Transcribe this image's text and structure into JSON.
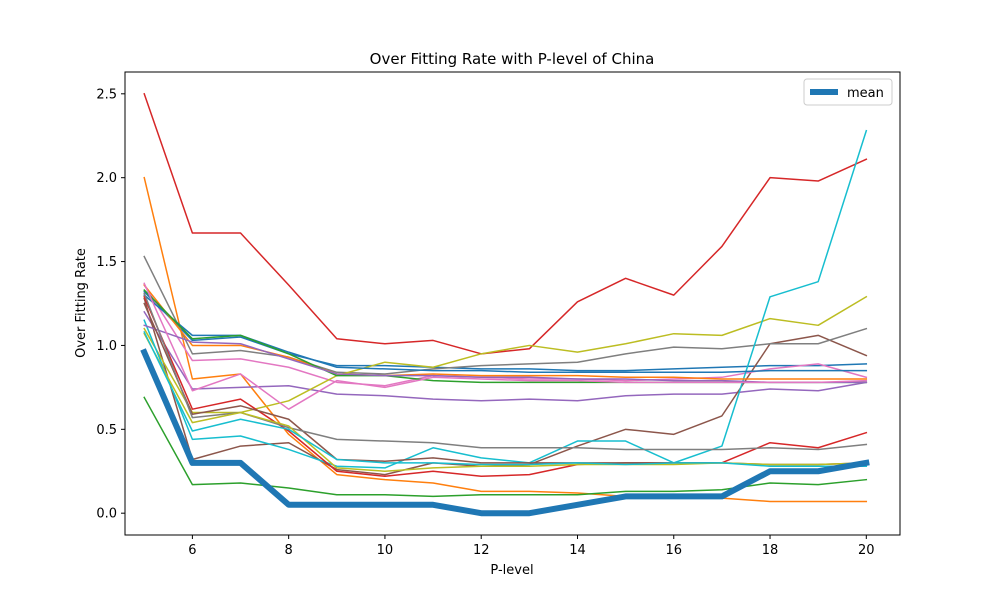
{
  "chart_data": {
    "type": "line",
    "title": "Over Fitting Rate with P-level of China",
    "xlabel": "P-level",
    "ylabel": "Over Fitting Rate",
    "xlim": [
      4.6,
      20.7
    ],
    "ylim": [
      -0.13,
      2.63
    ],
    "xticks": [
      6,
      8,
      10,
      12,
      14,
      16,
      18,
      20
    ],
    "yticks": [
      0.0,
      0.5,
      1.0,
      1.5,
      2.0,
      2.5
    ],
    "grid": false,
    "legend": {
      "position": "top-right",
      "entries": [
        "mean"
      ]
    },
    "x": [
      5,
      6,
      7,
      8,
      9,
      10,
      11,
      12,
      13,
      14,
      15,
      16,
      17,
      18,
      19,
      20
    ],
    "series": [
      {
        "color": "#1f77b4",
        "values": [
          1.32,
          1.03,
          1.05,
          0.95,
          0.88,
          0.88,
          0.87,
          0.86,
          0.86,
          0.85,
          0.85,
          0.86,
          0.87,
          0.88,
          0.88,
          0.89
        ]
      },
      {
        "color": "#ff7f0e",
        "values": [
          2.0,
          0.8,
          0.83,
          0.47,
          0.23,
          0.2,
          0.18,
          0.13,
          0.13,
          0.12,
          0.1,
          0.1,
          0.09,
          0.07,
          0.07,
          0.07
        ]
      },
      {
        "color": "#2ca02c",
        "values": [
          0.69,
          0.17,
          0.18,
          0.15,
          0.11,
          0.11,
          0.1,
          0.11,
          0.11,
          0.11,
          0.13,
          0.13,
          0.14,
          0.18,
          0.17,
          0.2
        ]
      },
      {
        "color": "#d62728",
        "values": [
          2.5,
          1.67,
          1.67,
          1.36,
          1.04,
          1.01,
          1.03,
          0.95,
          0.98,
          1.26,
          1.4,
          1.3,
          1.59,
          2.0,
          1.98,
          2.11
        ]
      },
      {
        "color": "#9467bd",
        "values": [
          1.2,
          0.74,
          0.75,
          0.76,
          0.71,
          0.7,
          0.68,
          0.67,
          0.68,
          0.67,
          0.7,
          0.71,
          0.71,
          0.74,
          0.73,
          0.78
        ]
      },
      {
        "color": "#8c564b",
        "values": [
          1.28,
          0.32,
          0.4,
          0.42,
          0.26,
          0.23,
          0.3,
          0.28,
          0.29,
          0.4,
          0.5,
          0.47,
          0.58,
          1.01,
          1.06,
          0.94
        ]
      },
      {
        "color": "#e377c2",
        "values": [
          1.36,
          0.91,
          0.92,
          0.87,
          0.78,
          0.76,
          0.82,
          0.81,
          0.8,
          0.8,
          0.79,
          0.8,
          0.81,
          0.86,
          0.89,
          0.81
        ]
      },
      {
        "color": "#7f7f7f",
        "values": [
          1.53,
          0.95,
          0.97,
          0.93,
          0.84,
          0.83,
          0.86,
          0.88,
          0.89,
          0.9,
          0.95,
          0.99,
          0.98,
          1.01,
          1.01,
          1.1
        ]
      },
      {
        "color": "#bcbd22",
        "values": [
          1.1,
          0.6,
          0.6,
          0.67,
          0.82,
          0.9,
          0.87,
          0.95,
          1.0,
          0.96,
          1.01,
          1.07,
          1.06,
          1.16,
          1.12,
          1.29
        ]
      },
      {
        "color": "#17becf",
        "values": [
          1.15,
          0.44,
          0.46,
          0.38,
          0.28,
          0.27,
          0.39,
          0.33,
          0.3,
          0.43,
          0.43,
          0.3,
          0.4,
          1.29,
          1.38,
          2.28
        ]
      },
      {
        "color": "#1f77b4",
        "values": [
          1.3,
          1.06,
          1.06,
          0.96,
          0.87,
          0.86,
          0.85,
          0.85,
          0.84,
          0.84,
          0.84,
          0.84,
          0.84,
          0.85,
          0.85,
          0.85
        ]
      },
      {
        "color": "#ff7f0e",
        "values": [
          1.36,
          1.0,
          1.0,
          0.93,
          0.83,
          0.82,
          0.83,
          0.82,
          0.82,
          0.82,
          0.81,
          0.81,
          0.8,
          0.8,
          0.8,
          0.8
        ]
      },
      {
        "color": "#2ca02c",
        "values": [
          1.33,
          1.04,
          1.06,
          0.95,
          0.82,
          0.82,
          0.79,
          0.78,
          0.78,
          0.78,
          0.78,
          0.78,
          0.78,
          0.78,
          0.78,
          0.78
        ]
      },
      {
        "color": "#d62728",
        "values": [
          1.29,
          0.62,
          0.68,
          0.49,
          0.25,
          0.22,
          0.25,
          0.22,
          0.23,
          0.29,
          0.3,
          0.3,
          0.3,
          0.42,
          0.39,
          0.48
        ]
      },
      {
        "color": "#9467bd",
        "values": [
          1.12,
          1.02,
          1.01,
          0.92,
          0.83,
          0.82,
          0.82,
          0.81,
          0.81,
          0.8,
          0.8,
          0.79,
          0.79,
          0.78,
          0.78,
          0.78
        ]
      },
      {
        "color": "#8c564b",
        "values": [
          1.25,
          0.59,
          0.64,
          0.56,
          0.32,
          0.31,
          0.33,
          0.3,
          0.3,
          0.3,
          0.3,
          0.3,
          0.3,
          0.29,
          0.29,
          0.3
        ]
      },
      {
        "color": "#e377c2",
        "values": [
          1.37,
          0.73,
          0.83,
          0.62,
          0.79,
          0.75,
          0.81,
          0.8,
          0.79,
          0.79,
          0.78,
          0.78,
          0.78,
          0.78,
          0.78,
          0.79
        ]
      },
      {
        "color": "#7f7f7f",
        "values": [
          1.31,
          0.57,
          0.6,
          0.51,
          0.44,
          0.43,
          0.42,
          0.39,
          0.39,
          0.39,
          0.38,
          0.38,
          0.38,
          0.39,
          0.38,
          0.41
        ]
      },
      {
        "color": "#bcbd22",
        "values": [
          1.07,
          0.54,
          0.6,
          0.52,
          0.27,
          0.25,
          0.27,
          0.28,
          0.28,
          0.29,
          0.29,
          0.29,
          0.3,
          0.29,
          0.29,
          0.3
        ]
      },
      {
        "color": "#17becf",
        "values": [
          1.08,
          0.49,
          0.56,
          0.5,
          0.32,
          0.3,
          0.3,
          0.29,
          0.29,
          0.3,
          0.29,
          0.3,
          0.3,
          0.28,
          0.28,
          0.28
        ]
      },
      {
        "name": "mean",
        "color": "#1f77b4",
        "bold": true,
        "values": [
          0.96,
          0.3,
          0.3,
          0.05,
          0.05,
          0.05,
          0.05,
          0.0,
          0.0,
          0.05,
          0.1,
          0.1,
          0.1,
          0.25,
          0.25,
          0.3
        ]
      }
    ]
  }
}
